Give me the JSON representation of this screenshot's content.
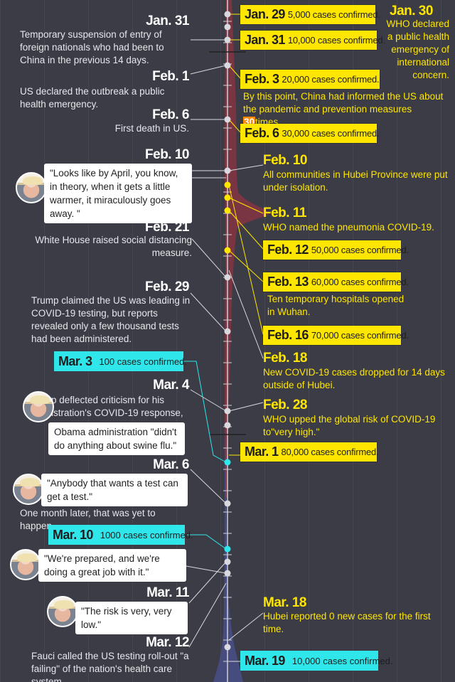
{
  "left": {
    "jan31_date": "Jan. 31",
    "jan31_text": "Temporary suspension of entry of foreign nationals who had been to China in the previous 14 days.",
    "feb1_date": "Feb. 1",
    "feb1_text": "US declared the outbreak a public health emergency.",
    "feb6_date": "Feb. 6",
    "feb6_text": "First death in US.",
    "feb10_date": "Feb. 10",
    "feb10_quote": "\"Looks like by April, you know, in theory, when it gets a little warmer, it miraculously goes away. \"",
    "feb21_date": "Feb. 21",
    "feb21_text": "White House raised social distancing measure.",
    "feb29_date": "Feb. 29",
    "feb29_text": "Trump claimed the US was leading in COVID-19 testing, but reports revealed only a few thousand tests had been administered.",
    "mar3_date": "Mar. 3",
    "mar3_text": "100 cases confirmed.",
    "mar4_date": "Mar. 4",
    "mar4_text": "p deflected criticism for his istration's COVID-19 response,",
    "mar4_quote": "Obama administration \"didn't do anything about swine flu.\"",
    "mar6_date": "Mar. 6",
    "mar6_quote": "\"Anybody that wants a test can get a test.\"",
    "mar6_text": "One month later, that was yet to happen.",
    "mar10_date": "Mar. 10",
    "mar10_text": "1000 cases confirmed.",
    "mar10_quote": "\"We're prepared, and we're doing a great job with it.\"",
    "mar11_date": "Mar. 11",
    "mar11_quote": "\"The risk is very, very low.\"",
    "mar12_date": "Mar. 12",
    "mar12_text": "Fauci called the US testing roll-out \"a failing\" of the nation's health care system."
  },
  "right": {
    "jan29_date": "Jan. 29",
    "jan29_text": "5,000 cases confirmed.",
    "jan30_date": "Jan. 30",
    "jan30_text": "WHO declared a public health emergency of international concern.",
    "jan31_date": "Jan. 31",
    "jan31_text": "10,000 cases confirmed.",
    "feb3_date": "Feb. 3",
    "feb3_text": "20,000 cases confirmed.",
    "feb3_note_a": "By this point, China had informed the US about the pandemic and prevention measures",
    "feb3_note_num": "30",
    "feb3_note_b": "times.",
    "feb6_date": "Feb. 6",
    "feb6_text": "30,000 cases confirmed.",
    "feb10_date": "Feb. 10",
    "feb10_text": "All communities in Hubei Province were put under isolation.",
    "feb11_date": "Feb. 11",
    "feb11_text": "WHO named the pneumonia COVID-19.",
    "feb12_date": "Feb. 12",
    "feb12_text": "50,000 cases confirmed.",
    "feb13_date": "Feb. 13",
    "feb13_text": "60,000 cases confirmed.",
    "feb13_note": "Ten temporary hospitals opened in Wuhan.",
    "feb16_date": "Feb. 16",
    "feb16_text": "70,000 cases confirmed.",
    "feb18_date": "Feb. 18",
    "feb18_text": "New COVID-19 cases dropped for 14 days outside of Hubei.",
    "feb28_date": "Feb. 28",
    "feb28_text": "WHO upped the global risk of COVID-19 to\"very high.\"",
    "mar1_date": "Mar. 1",
    "mar1_text": "80,000 cases confirmed.",
    "mar18_date": "Mar. 18",
    "mar18_text": "Hubei reported 0 new cases for the first time.",
    "mar19_date": "Mar. 19",
    "mar19_text": "10,000 cases confirmed."
  },
  "colors": {
    "background": "#3b3c46",
    "china_highlight": "#ffe600",
    "us_highlight": "#2fe6ea",
    "china_curve": "#8a3340",
    "us_curve": "#4a4f8a",
    "emphasis": "#ff8a00"
  }
}
